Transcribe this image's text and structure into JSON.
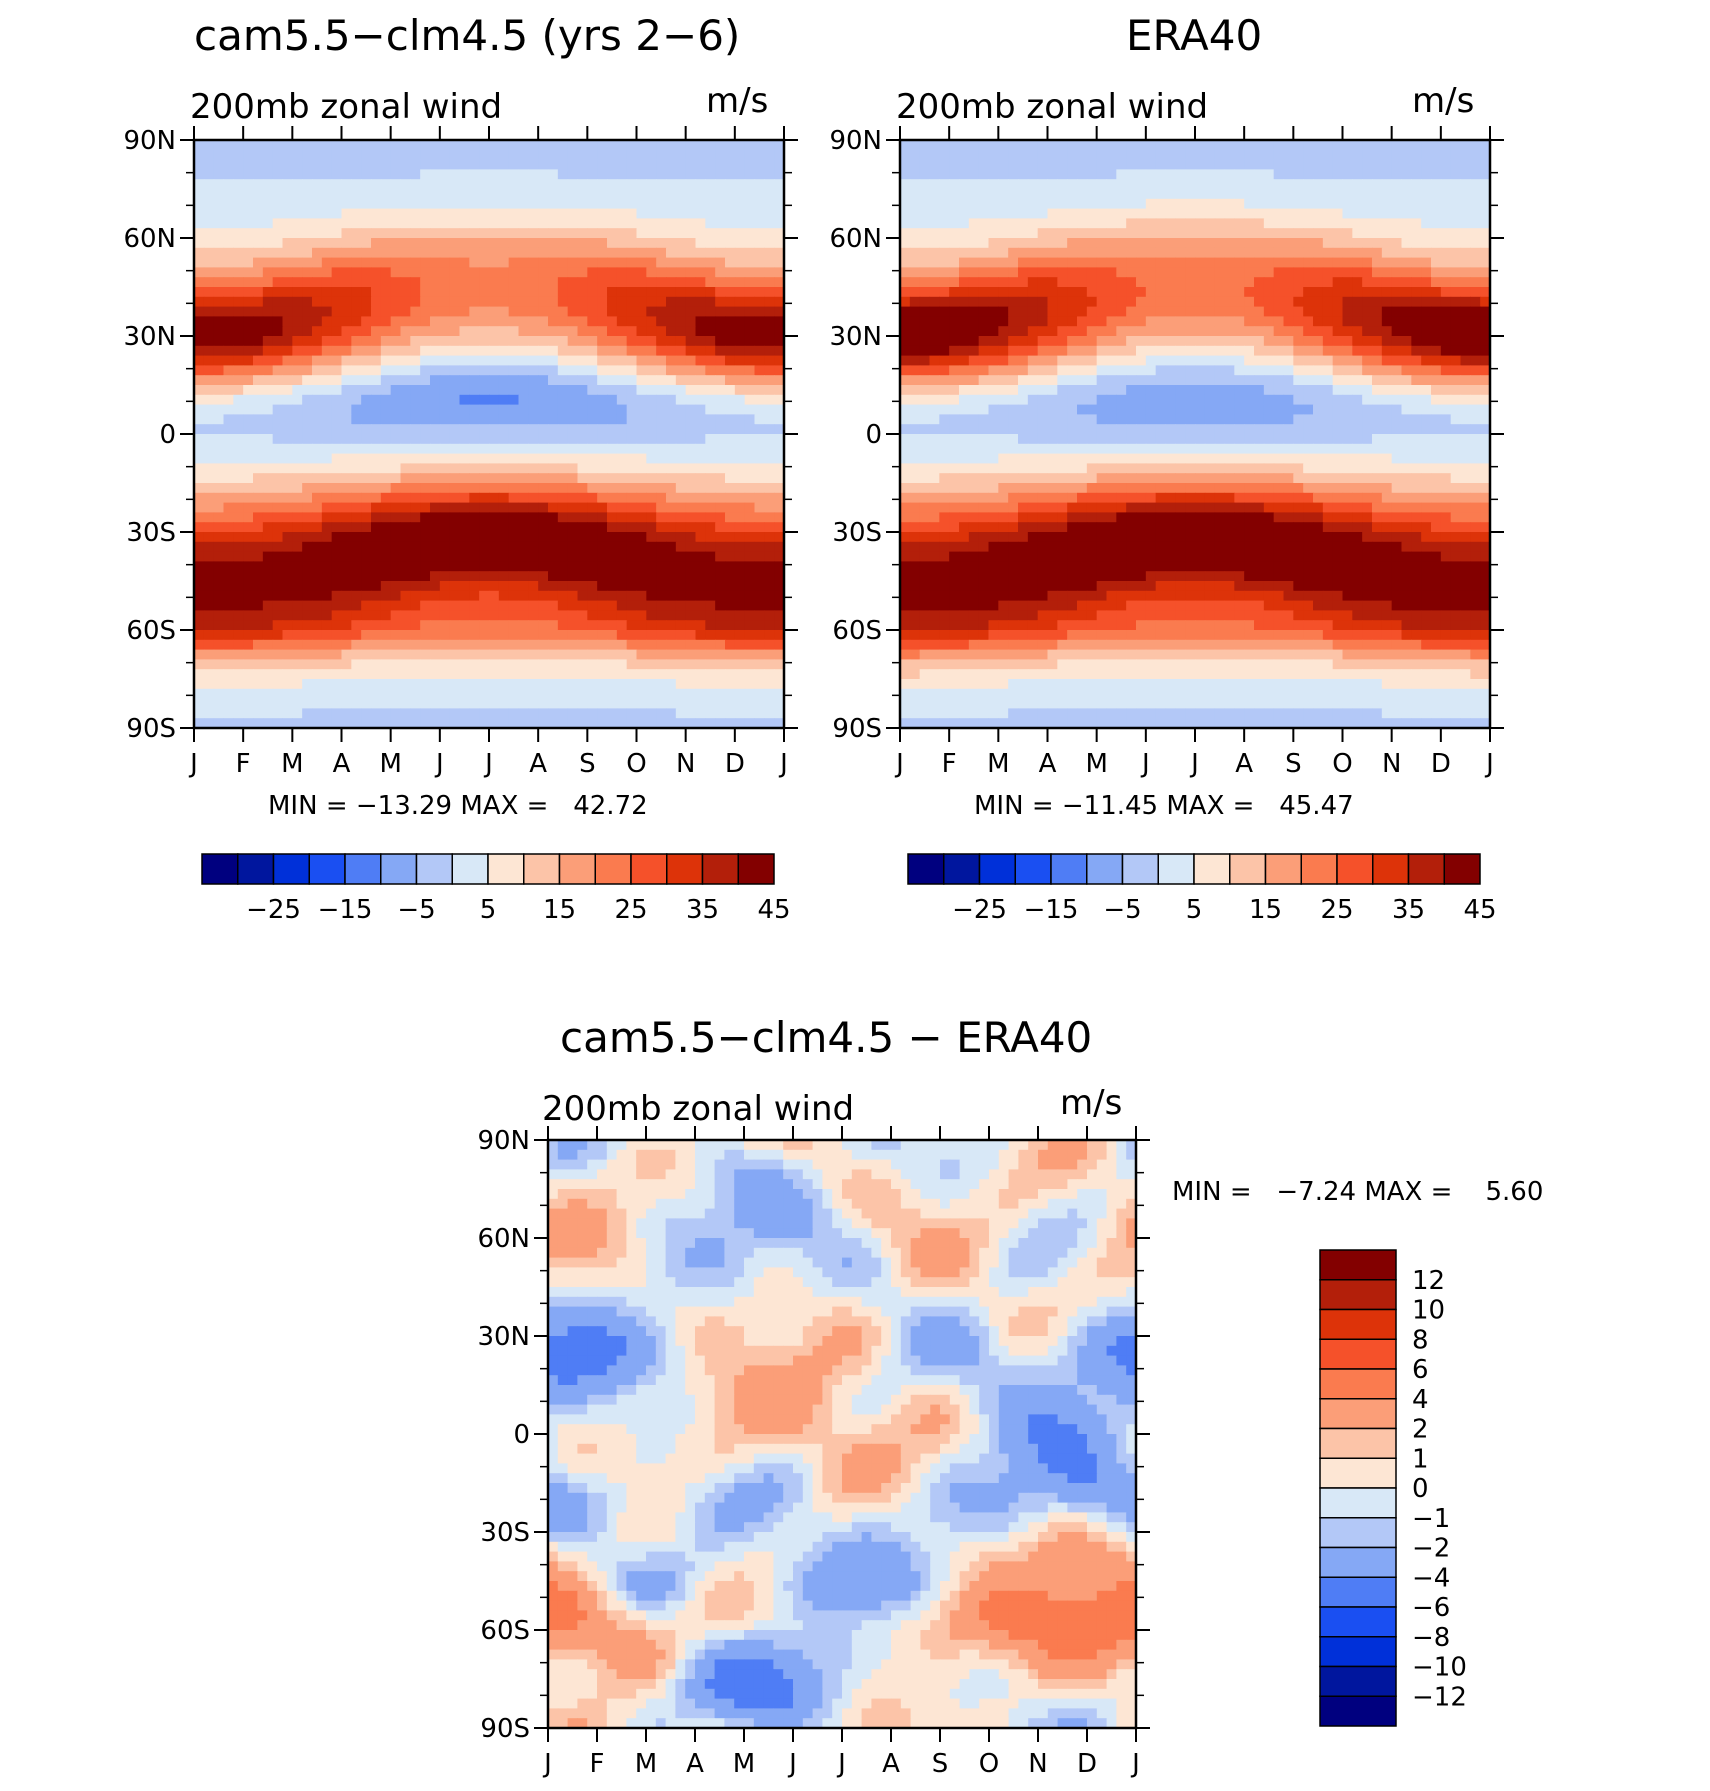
{
  "colors": {
    "ramp16": [
      "#00007f",
      "#00169e",
      "#0030d9",
      "#1a4ff2",
      "#4f7df5",
      "#85a8f5",
      "#b3c8f7",
      "#d8e8f7",
      "#fde6d4",
      "#fcc4a8",
      "#fb9e78",
      "#fa7b4f",
      "#f5512a",
      "#dd3309",
      "#b31f0a",
      "#830000"
    ],
    "ramp16_diff": [
      "#00007f",
      "#00169e",
      "#0030d9",
      "#1a4ff2",
      "#4f7df5",
      "#85a8f5",
      "#b3c8f7",
      "#d8e8f7",
      "#fde6d4",
      "#fcc4a8",
      "#fb9e78",
      "#fa7b4f",
      "#f5512a",
      "#dd3309",
      "#b31f0a",
      "#830000"
    ]
  },
  "chart_data": [
    {
      "type": "heatmap",
      "title": "cam5.5−clm4.5 (yrs 2−6)",
      "subtitle_left": "200mb zonal wind",
      "subtitle_right": "m/s",
      "x_ticks": [
        "J",
        "F",
        "M",
        "A",
        "M",
        "J",
        "J",
        "A",
        "S",
        "O",
        "N",
        "D",
        "J"
      ],
      "y_ticks": [
        "90N",
        "60N",
        "30N",
        "0",
        "30S",
        "60S",
        "90S"
      ],
      "ylim": [
        -90,
        90
      ],
      "stats_text": "MIN = −13.29 MAX =   42.72",
      "min": -13.29,
      "max": 42.72,
      "colorbar": {
        "orientation": "horizontal",
        "levels": [
          -30,
          -25,
          -20,
          -15,
          -10,
          -5,
          0,
          5,
          10,
          15,
          20,
          25,
          30,
          35,
          40,
          45
        ],
        "labels": [
          "−25",
          "−15",
          "−5",
          "5",
          "15",
          "25",
          "35",
          "45"
        ]
      },
      "fields": {
        "jet_north_winter": 42,
        "jet_north_summer": 15,
        "jet_south_winter": 40,
        "jet_south_summer": 25,
        "tropical_easterly_min": -13
      }
    },
    {
      "type": "heatmap",
      "title": "ERA40",
      "subtitle_left": "200mb zonal wind",
      "subtitle_right": "m/s",
      "x_ticks": [
        "J",
        "F",
        "M",
        "A",
        "M",
        "J",
        "J",
        "A",
        "S",
        "O",
        "N",
        "D",
        "J"
      ],
      "y_ticks": [
        "90N",
        "60N",
        "30N",
        "0",
        "30S",
        "60S",
        "90S"
      ],
      "ylim": [
        -90,
        90
      ],
      "stats_text": "MIN = −11.45 MAX =   45.47",
      "min": -11.45,
      "max": 45.47,
      "colorbar": {
        "orientation": "horizontal",
        "levels": [
          -30,
          -25,
          -20,
          -15,
          -10,
          -5,
          0,
          5,
          10,
          15,
          20,
          25,
          30,
          35,
          40,
          45
        ],
        "labels": [
          "−25",
          "−15",
          "−5",
          "5",
          "15",
          "25",
          "35",
          "45"
        ]
      },
      "fields": {
        "jet_north_winter": 45,
        "jet_north_summer": 16,
        "jet_south_winter": 41,
        "jet_south_summer": 26,
        "tropical_easterly_min": -11
      }
    },
    {
      "type": "heatmap",
      "title": "cam5.5−clm4.5 − ERA40",
      "subtitle_left": "200mb zonal wind",
      "subtitle_right": "m/s",
      "x_ticks": [
        "J",
        "F",
        "M",
        "A",
        "M",
        "J",
        "J",
        "A",
        "S",
        "O",
        "N",
        "D",
        "J"
      ],
      "y_ticks": [
        "90N",
        "60N",
        "30N",
        "0",
        "30S",
        "60S",
        "90S"
      ],
      "ylim": [
        -90,
        90
      ],
      "stats_text": "MIN =   −7.24 MAX =    5.60",
      "min": -7.24,
      "max": 5.6,
      "colorbar": {
        "orientation": "vertical",
        "levels": [
          -12,
          -10,
          -8,
          -6,
          -4,
          -2,
          -1,
          0,
          1,
          2,
          4,
          6,
          8,
          10,
          12
        ],
        "labels": [
          "12",
          "10",
          "8",
          "6",
          "4",
          "2",
          "1",
          "0",
          "−1",
          "−2",
          "−4",
          "−6",
          "−8",
          "−10",
          "−12"
        ]
      }
    }
  ]
}
